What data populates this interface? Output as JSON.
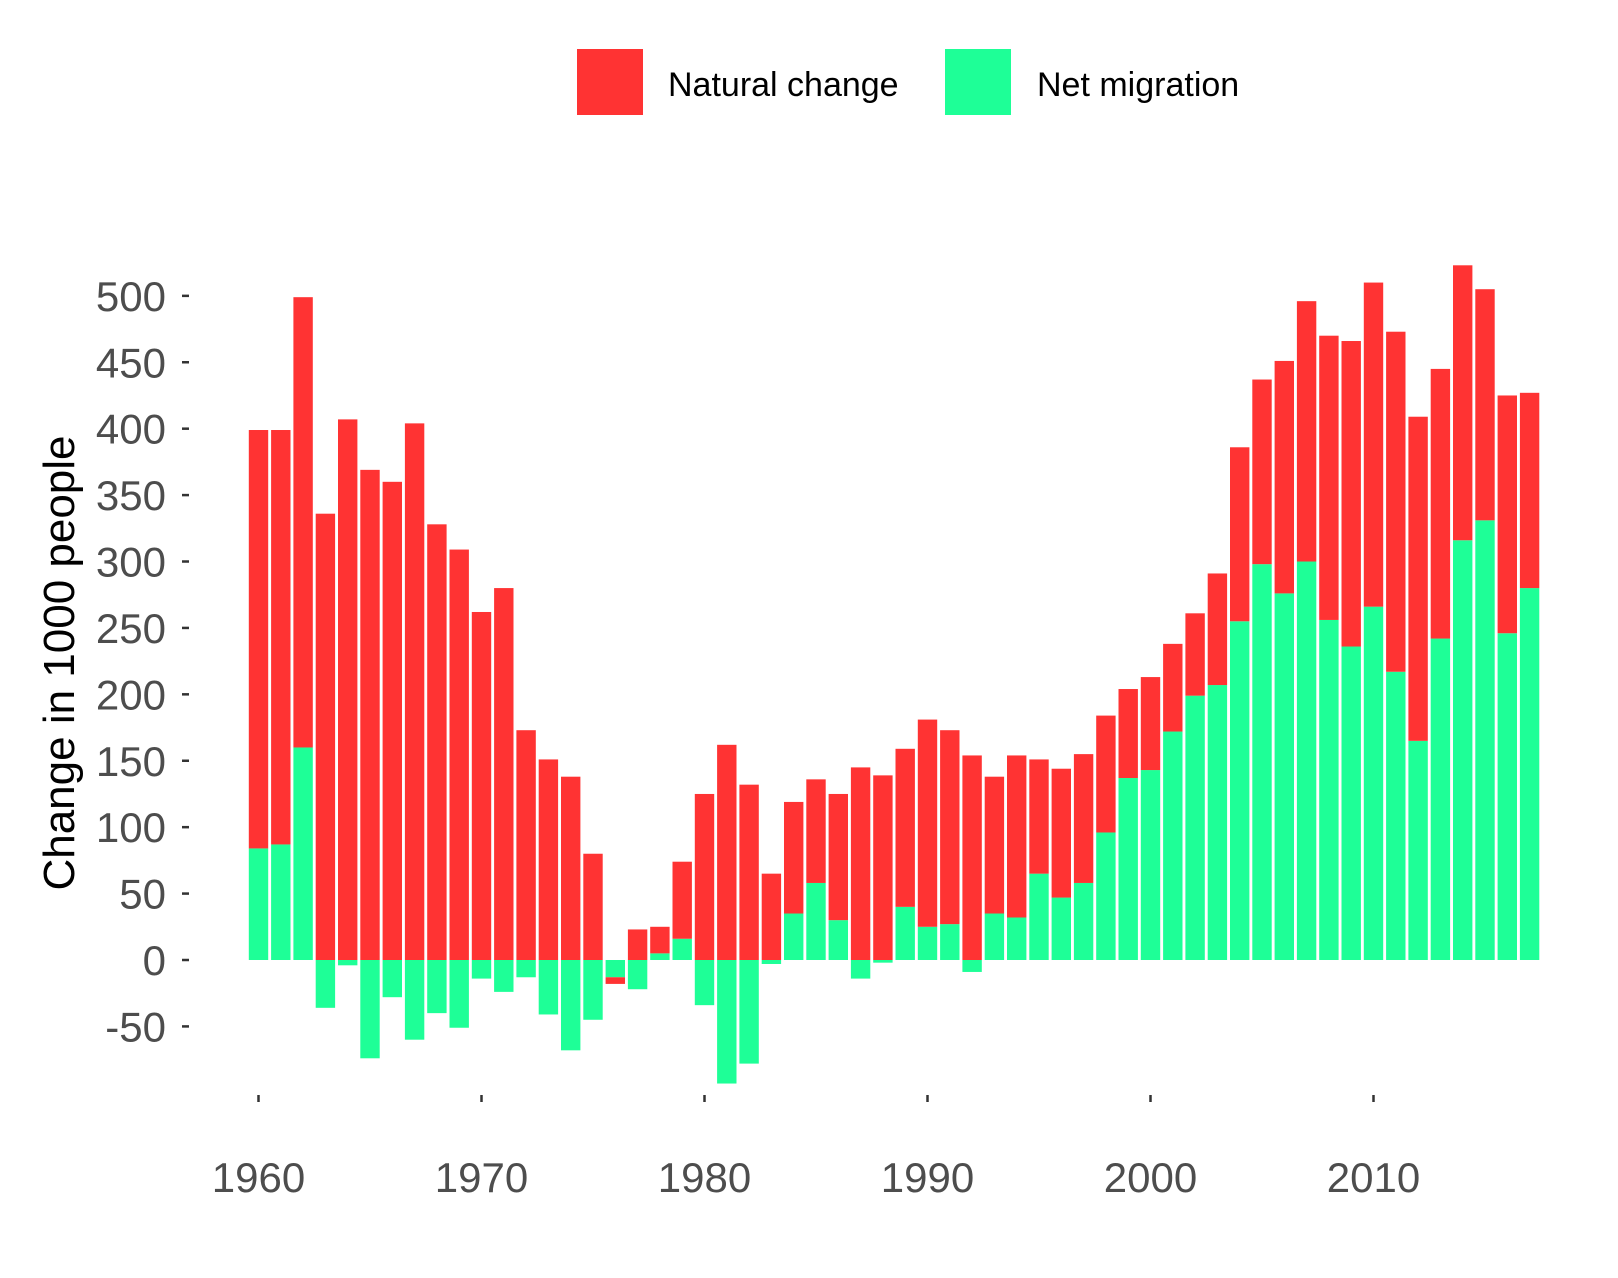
{
  "chart_data": {
    "type": "bar",
    "stacked": true,
    "title": "",
    "xlabel": "",
    "ylabel": "Change in 1000 people",
    "x": [
      1960,
      1961,
      1962,
      1963,
      1964,
      1965,
      1966,
      1967,
      1968,
      1969,
      1970,
      1971,
      1972,
      1973,
      1974,
      1975,
      1976,
      1977,
      1978,
      1979,
      1980,
      1981,
      1982,
      1983,
      1984,
      1985,
      1986,
      1987,
      1988,
      1989,
      1990,
      1991,
      1992,
      1993,
      1994,
      1995,
      1996,
      1997,
      1998,
      1999,
      2000,
      2001,
      2002,
      2003,
      2004,
      2005,
      2006,
      2007,
      2008,
      2009,
      2010,
      2011,
      2012,
      2013,
      2014,
      2015,
      2016,
      2017
    ],
    "series": [
      {
        "name": "Natural change",
        "color": "#ff3333",
        "values": [
          315,
          312,
          339,
          336,
          407,
          369,
          360,
          404,
          328,
          309,
          262,
          280,
          173,
          151,
          138,
          80,
          -5,
          23,
          20,
          58,
          125,
          162,
          132,
          65,
          84,
          78,
          95,
          145,
          139,
          119,
          156,
          146,
          154,
          103,
          122,
          86,
          97,
          97,
          88,
          67,
          70,
          66,
          62,
          84,
          131,
          139,
          175,
          196,
          214,
          230,
          244,
          256,
          244,
          203,
          207,
          174,
          179,
          147
        ],
        "values_note": ""
      },
      {
        "name": "Net migration",
        "color": "#1eff97",
        "values": [
          84,
          87,
          160,
          -36,
          -4,
          -74,
          -28,
          -60,
          -40,
          -51,
          -14,
          -24,
          -13,
          -41,
          -68,
          -45,
          -13,
          -22,
          5,
          16,
          -34,
          -93,
          -78,
          -3,
          35,
          58,
          30,
          -14,
          -2,
          40,
          25,
          27,
          -9,
          35,
          32,
          65,
          47,
          58,
          96,
          137,
          143,
          172,
          199,
          207,
          255,
          298,
          276,
          300,
          256,
          236,
          266,
          217,
          165,
          242,
          316,
          331,
          246,
          280
        ]
      }
    ],
    "ylim": [
      -95,
      530
    ],
    "yticks": [
      -50,
      0,
      50,
      100,
      150,
      200,
      250,
      300,
      350,
      400,
      450,
      500
    ],
    "xticks": [
      1960,
      1970,
      1980,
      1990,
      2000,
      2010
    ],
    "grid": false,
    "legend_position": "top"
  }
}
